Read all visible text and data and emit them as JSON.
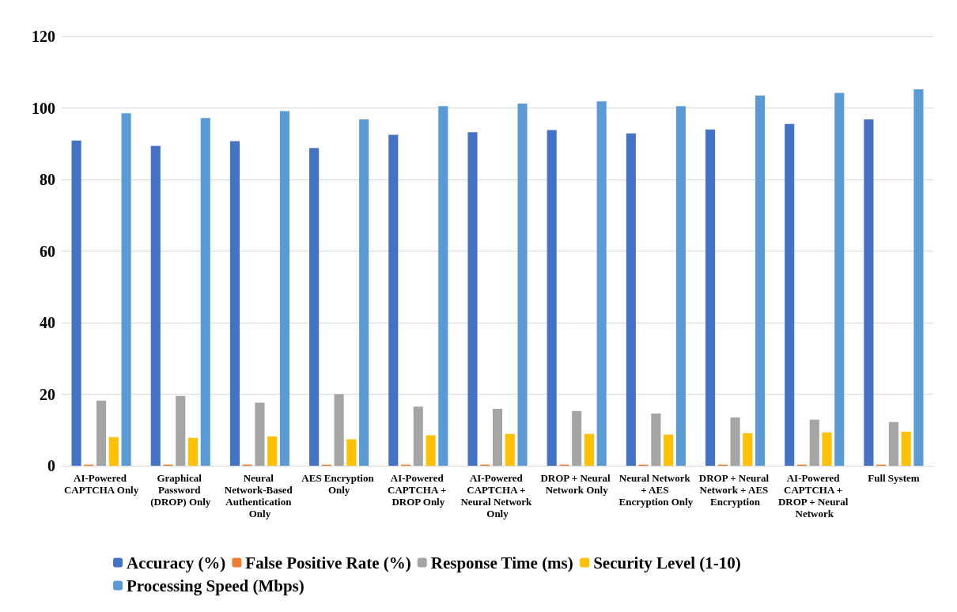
{
  "chart_data": {
    "type": "bar",
    "categories": [
      "AI-Powered CAPTCHA Only",
      "Graphical Password (DROP) Only",
      "Neural Network-Based Authentication Only",
      "AES Encryption Only",
      "AI-Powered CAPTCHA + DROP Only",
      "AI-Powered CAPTCHA + Neural Network Only",
      "DROP + Neural Network Only",
      "Neural Network + AES Encryption Only",
      "DROP + Neural Network + AES Encryption",
      "AI-Powered CAPTCHA + DROP + Neural Network",
      "Full System"
    ],
    "series": [
      {
        "name": "Accuracy (%)",
        "color": "#4472c4",
        "values": [
          90.9,
          89.4,
          90.7,
          88.8,
          92.5,
          93.2,
          93.8,
          92.9,
          94.0,
          95.5,
          96.8
        ]
      },
      {
        "name": "False Positive Rate (%)",
        "color": "#ed7d31",
        "values": [
          0.3,
          0.3,
          0.3,
          0.3,
          0.3,
          0.3,
          0.3,
          0.3,
          0.3,
          0.3,
          0.3
        ]
      },
      {
        "name": "Response Time (ms)",
        "color": "#a5a5a5",
        "values": [
          18.2,
          19.5,
          17.6,
          20.0,
          16.5,
          15.9,
          15.3,
          14.6,
          13.5,
          12.9,
          12.2
        ]
      },
      {
        "name": "Security Level (1-10)",
        "color": "#ffc000",
        "values": [
          8.0,
          7.8,
          8.2,
          7.4,
          8.5,
          8.9,
          8.9,
          8.7,
          9.1,
          9.3,
          9.5
        ]
      },
      {
        "name": "Processing Speed (Mbps)",
        "color": "#5b9bd5",
        "values": [
          98.5,
          97.2,
          99.1,
          96.8,
          100.5,
          101.2,
          101.8,
          100.5,
          103.5,
          104.2,
          105.2
        ]
      }
    ],
    "ylim": [
      0,
      120
    ],
    "yticks": [
      0,
      20,
      40,
      60,
      80,
      100,
      120
    ],
    "grid": "y",
    "legend": "bottom"
  }
}
